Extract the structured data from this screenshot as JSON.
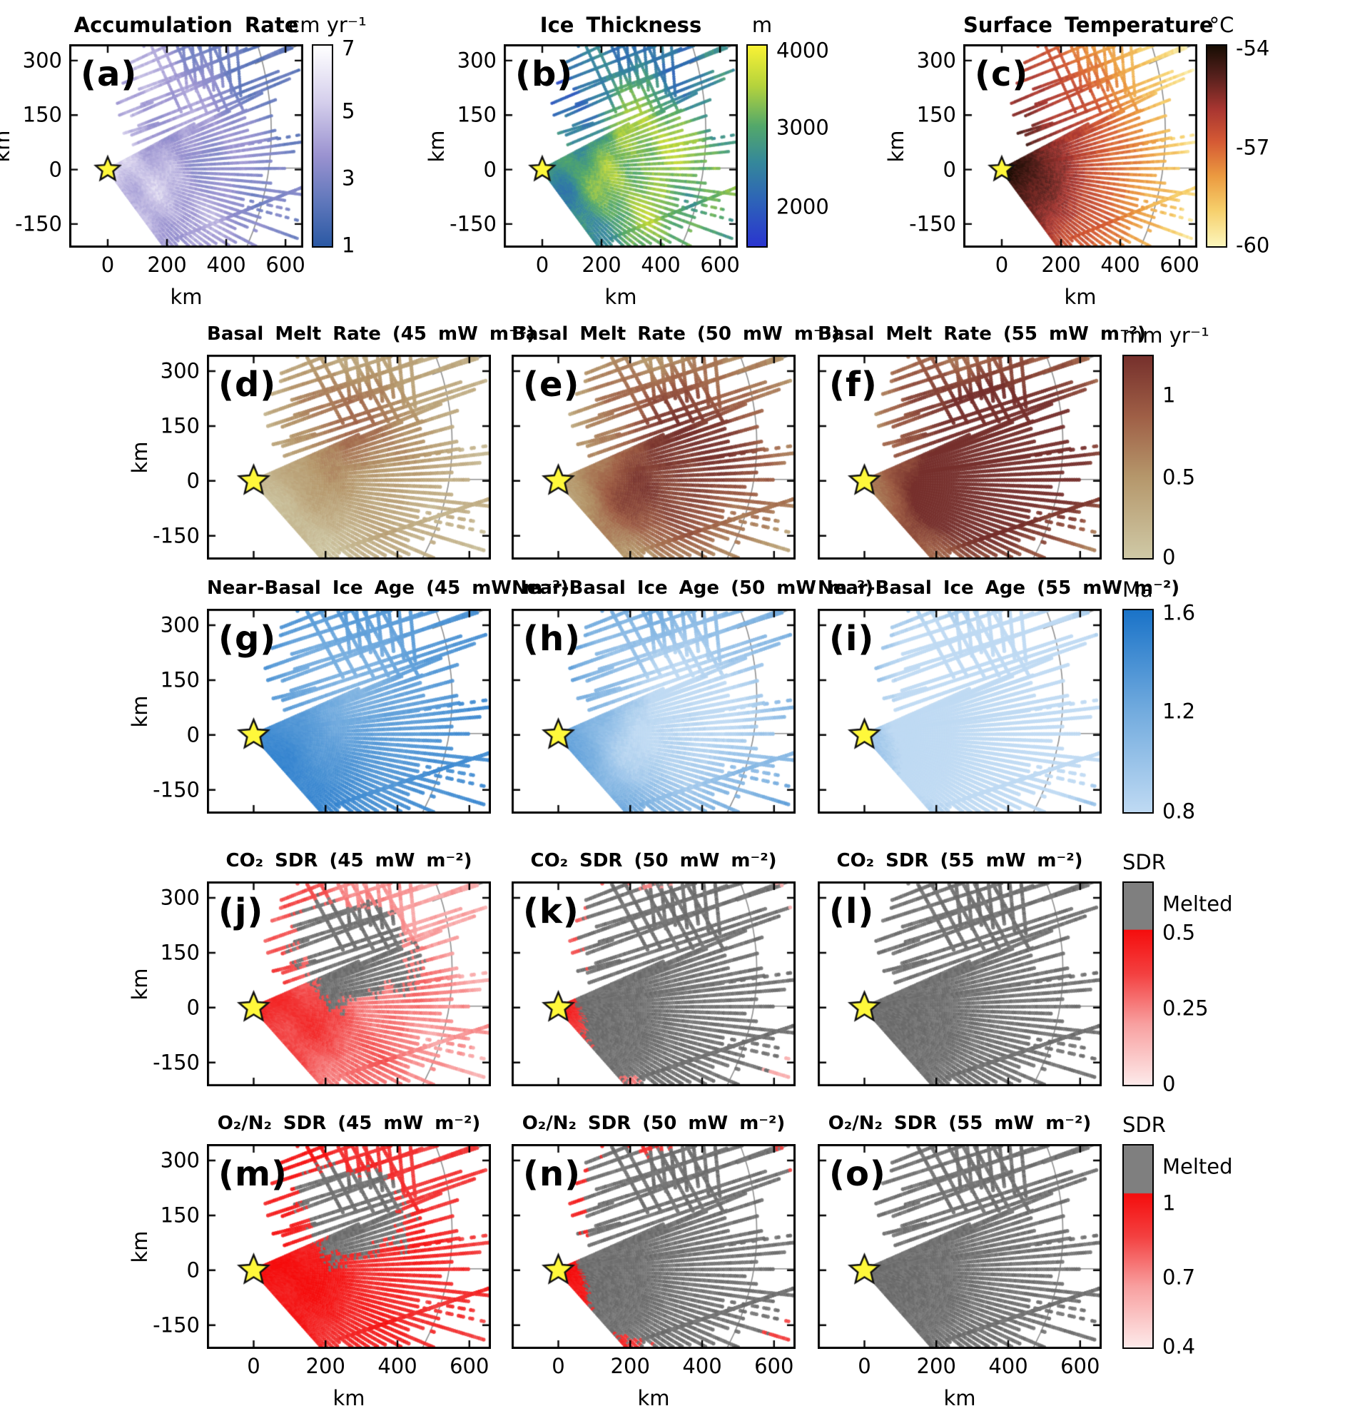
{
  "chart_data": {
    "type": "scatter",
    "description": "Fifteen-panel (a-o) map figure of airborne radar survey flight lines around a pole marker (yellow star at 0,0 km). Row 1: surface fields with individual colorbars. Rows 2-5: basal melt rate, near-basal ice age, CO2 SDR and O2/N2 SDR, each computed for geothermal heat fluxes of 45, 50 and 55 mW m-2, sharing one colorbar per row. Gray graticule arc and lines cross the right side of every panel.",
    "axes": {
      "xlabel": "km",
      "ylabel": "km",
      "x_ticks": [
        0,
        200,
        400,
        600
      ],
      "y_ticks": [
        300,
        150,
        0,
        -150
      ],
      "x_range_km": [
        -130,
        660
      ],
      "y_range_km": [
        -215,
        345
      ]
    },
    "landmarks": {
      "pole_star_km": [
        0,
        0
      ],
      "star_color": "#fff83b",
      "graticule_color": "#8f8f8f",
      "melted_gray": "#7f7f7f"
    },
    "colormaps": {
      "accum": [
        [
          0,
          "#2b59a4"
        ],
        [
          0.35,
          "#6f80c2"
        ],
        [
          0.6,
          "#9a92d0"
        ],
        [
          0.85,
          "#d5cfec"
        ],
        [
          1,
          "#ffffff"
        ]
      ],
      "parula": [
        [
          0,
          "#2a35cf"
        ],
        [
          0.22,
          "#2d62b9"
        ],
        [
          0.42,
          "#35889a"
        ],
        [
          0.6,
          "#53a86a"
        ],
        [
          0.8,
          "#b5d33c"
        ],
        [
          1,
          "#f9f235"
        ]
      ],
      "temp": [
        [
          0,
          "#fcf6bc"
        ],
        [
          0.18,
          "#f6cf6b"
        ],
        [
          0.35,
          "#eb9a40"
        ],
        [
          0.52,
          "#d55a34"
        ],
        [
          0.68,
          "#a93631"
        ],
        [
          0.85,
          "#55201c"
        ],
        [
          1,
          "#170d03"
        ]
      ],
      "melt": [
        [
          0,
          "#cfc9a6"
        ],
        [
          0.4,
          "#b5976b"
        ],
        [
          0.7,
          "#9f5f46"
        ],
        [
          1,
          "#76302c"
        ]
      ],
      "age": [
        [
          0,
          "#bfdaf3"
        ],
        [
          0.5,
          "#72abde"
        ],
        [
          1,
          "#1a73c8"
        ]
      ],
      "sdr": [
        [
          0,
          "#fdecec"
        ],
        [
          0.45,
          "#f8a8a8"
        ],
        [
          0.8,
          "#f23b3b"
        ],
        [
          1,
          "#f50d0d"
        ]
      ]
    },
    "melt_fields": [
      {
        "heat_flux": "45 mW m⁻²",
        "base": 0.1,
        "kr": -0.06,
        "noise": 0.13,
        "blobs": [
          [
            240,
            125,
            135,
            0.42
          ],
          [
            430,
            255,
            150,
            0.2
          ],
          [
            420,
            -120,
            150,
            0.12
          ],
          [
            120,
            205,
            90,
            0.12
          ]
        ]
      },
      {
        "heat_flux": "50 mW m⁻²",
        "base": 0.17,
        "kr": -0.08,
        "noise": 0.18,
        "blobs": [
          [
            300,
            115,
            165,
            0.52
          ],
          [
            185,
            -70,
            120,
            0.34
          ],
          [
            480,
            230,
            155,
            0.3
          ],
          [
            420,
            -120,
            160,
            0.3
          ],
          [
            600,
            40,
            120,
            0.2
          ],
          [
            95,
            235,
            80,
            0.15
          ]
        ]
      },
      {
        "heat_flux": "55 mW m⁻²",
        "base": 0.3,
        "kr": -0.1,
        "noise": 0.2,
        "blobs": [
          [
            300,
            115,
            180,
            0.58
          ],
          [
            185,
            -70,
            130,
            0.44
          ],
          [
            500,
            215,
            165,
            0.4
          ],
          [
            420,
            -120,
            170,
            0.4
          ],
          [
            600,
            40,
            130,
            0.28
          ],
          [
            95,
            235,
            80,
            0.18
          ]
        ]
      }
    ],
    "rows": [
      {
        "id": "surface-fields",
        "kind": "direct",
        "panels": [
          {
            "letter": "(a)",
            "title": "Accumulation Rate",
            "cmap": "accum",
            "field": {
              "base": 0.62,
              "kx": -0.33,
              "ky": -0.12,
              "kr": 0.28,
              "noise": 0.26
            },
            "colorbar": {
              "unit": "cm yr⁻¹",
              "value_range": [
                1,
                7
              ],
              "bar": [
                [
                  0,
                  "#ffffff"
                ],
                [
                  28,
                  "#d5cfec"
                ],
                [
                  55,
                  "#9a92d0"
                ],
                [
                  78,
                  "#5f77bb"
                ],
                [
                  100,
                  "#2b59a4"
                ]
              ],
              "ticks": [
                [
                  "7",
                  2
                ],
                [
                  "5",
                  33
                ],
                [
                  "3",
                  66
                ],
                [
                  "1",
                  99
                ]
              ]
            }
          },
          {
            "letter": "(b)",
            "title": "Ice Thickness",
            "cmap": "parula",
            "field": {
              "base": 0.52,
              "ky": -0.05,
              "noise": 0.3,
              "blobs": [
                [
                  260,
                  100,
                  190,
                  0.35
                ],
                [
                  120,
                  235,
                  110,
                  -0.5
                ],
                [
                  420,
                  280,
                  130,
                  -0.25
                ],
                [
                  90,
                  -80,
                  110,
                  -0.2
                ]
              ]
            },
            "colorbar": {
              "unit": "m",
              "value_range": [
                1500,
                4000
              ],
              "bar": [
                [
                  0,
                  "#f9f235"
                ],
                [
                  20,
                  "#b5d33c"
                ],
                [
                  40,
                  "#53a86a"
                ],
                [
                  58,
                  "#35889a"
                ],
                [
                  78,
                  "#2d62b9"
                ],
                [
                  100,
                  "#2a35cf"
                ]
              ],
              "ticks": [
                [
                  "4000",
                  3
                ],
                [
                  "3000",
                  41
                ],
                [
                  "2000",
                  80
                ]
              ]
            }
          },
          {
            "letter": "(c)",
            "title": "Surface Temperature",
            "cmap": "temp",
            "field": {
              "base": 0.04,
              "kr": 0.97,
              "noise": 0.06
            },
            "colorbar": {
              "unit": "°C",
              "value_range": [
                -60,
                -54
              ],
              "bar": [
                [
                  0,
                  "#170d03"
                ],
                [
                  15,
                  "#55201c"
                ],
                [
                  32,
                  "#a93631"
                ],
                [
                  48,
                  "#d55a34"
                ],
                [
                  65,
                  "#eb9a40"
                ],
                [
                  82,
                  "#f6cf6b"
                ],
                [
                  100,
                  "#fcf6bc"
                ]
              ],
              "ticks": [
                [
                  "-54",
                  2
                ],
                [
                  "-57",
                  51
                ],
                [
                  "-60",
                  99
                ]
              ]
            }
          }
        ]
      },
      {
        "id": "basal-melt-rate",
        "kind": "melt",
        "cmap": "melt",
        "colorbar": {
          "unit": "mm yr⁻¹",
          "value_range": [
            0,
            1.25
          ],
          "bar": [
            [
              0,
              "#76302c"
            ],
            [
              30,
              "#9f5f46"
            ],
            [
              60,
              "#b5976b"
            ],
            [
              100,
              "#cfc9a6"
            ]
          ],
          "ticks": [
            [
              "1",
              20
            ],
            [
              "0.5",
              60
            ],
            [
              "0",
              99
            ]
          ]
        },
        "panels": [
          {
            "letter": "(d)",
            "title": "Basal Melt Rate (45 mW m⁻²)",
            "melt_index": 0
          },
          {
            "letter": "(e)",
            "title": "Basal Melt Rate (50 mW m⁻²)",
            "melt_index": 1
          },
          {
            "letter": "(f)",
            "title": "Basal Melt Rate (55 mW m⁻²)",
            "melt_index": 2
          }
        ]
      },
      {
        "id": "near-basal-ice-age",
        "kind": "age",
        "cmap": "age",
        "colorbar": {
          "unit": "Ma",
          "value_range": [
            0.8,
            1.6
          ],
          "bar": [
            [
              0,
              "#1a73c8"
            ],
            [
              50,
              "#72abde"
            ],
            [
              100,
              "#bfdaf3"
            ]
          ],
          "ticks": [
            [
              "1.6",
              2
            ],
            [
              "1.2",
              50
            ],
            [
              "0.8",
              99
            ]
          ]
        },
        "panels": [
          {
            "letter": "(g)",
            "title": "Near-Basal Ice Age (45 mW m⁻²)",
            "melt_index": 0,
            "offset": 0.9,
            "mscale": 0.8
          },
          {
            "letter": "(h)",
            "title": "Near-Basal Ice Age (50 mW m⁻²)",
            "melt_index": 1,
            "offset": 0.88,
            "mscale": 0.95
          },
          {
            "letter": "(i)",
            "title": "Near-Basal Ice Age (55 mW m⁻²)",
            "melt_index": 2,
            "offset": 0.8,
            "mscale": 1.05
          }
        ]
      },
      {
        "id": "co2-sdr",
        "kind": "sdr",
        "cmap": "sdr",
        "colorbar": {
          "unit": "SDR",
          "melted_label": "Melted",
          "melted_boundary_pct": 23,
          "value_range": [
            0,
            0.5
          ],
          "bar": [
            [
              0,
              "#7f7f7f"
            ],
            [
              23,
              "#7f7f7f"
            ],
            [
              23.4,
              "#f50d0d"
            ],
            [
              45,
              "#f34040"
            ],
            [
              70,
              "#f8a0a0"
            ],
            [
              100,
              "#fdeaea"
            ]
          ],
          "ticks": [
            [
              "Melted",
              11
            ],
            [
              "0.5",
              25
            ],
            [
              "0.25",
              62
            ],
            [
              "0",
              99
            ]
          ]
        },
        "panels": [
          {
            "letter": "(j)",
            "title": "CO₂ SDR (45 mW m⁻²)",
            "melt_index": 0,
            "threshold": 0.42,
            "field": {
              "base": 0.4,
              "kr": 0.5,
              "noise": 0.18
            }
          },
          {
            "letter": "(k)",
            "title": "CO₂ SDR (50 mW m⁻²)",
            "melt_index": 1,
            "threshold": 0.4,
            "field": {
              "base": 0.42,
              "kr": 0.5,
              "noise": 0.18
            }
          },
          {
            "letter": "(l)",
            "title": "CO₂ SDR (55 mW m⁻²)",
            "melt_index": 2,
            "threshold": 0.4,
            "field": {
              "base": 0.42,
              "kr": 0.55,
              "noise": 0.18
            }
          }
        ]
      },
      {
        "id": "o2n2-sdr",
        "kind": "sdr",
        "cmap": "sdr",
        "colorbar": {
          "unit": "SDR",
          "melted_label": "Melted",
          "melted_boundary_pct": 23.5,
          "value_range": [
            0.4,
            1
          ],
          "bar": [
            [
              0,
              "#7f7f7f"
            ],
            [
              23.5,
              "#7f7f7f"
            ],
            [
              23.9,
              "#f50d0d"
            ],
            [
              45,
              "#f34040"
            ],
            [
              70,
              "#f8a0a0"
            ],
            [
              100,
              "#fdeaea"
            ]
          ],
          "ticks": [
            [
              "Melted",
              11
            ],
            [
              "1",
              29
            ],
            [
              "0.7",
              65
            ],
            [
              "0.4",
              99
            ]
          ]
        },
        "panels": [
          {
            "letter": "(m)",
            "title": "O₂/N₂ SDR (45 mW m⁻²)",
            "melt_index": 0,
            "threshold": 0.45,
            "field": {
              "base": 0.8,
              "kr": 0.2,
              "noise": 0.12
            }
          },
          {
            "letter": "(n)",
            "title": "O₂/N₂ SDR (50 mW m⁻²)",
            "melt_index": 1,
            "threshold": 0.42,
            "field": {
              "base": 0.8,
              "kr": 0.2,
              "noise": 0.12
            }
          },
          {
            "letter": "(o)",
            "title": "O₂/N₂ SDR (55 mW m⁻²)",
            "melt_index": 2,
            "threshold": 0.38,
            "field": {
              "base": 0.82,
              "kr": 0.18,
              "noise": 0.12
            }
          }
        ]
      }
    ]
  }
}
